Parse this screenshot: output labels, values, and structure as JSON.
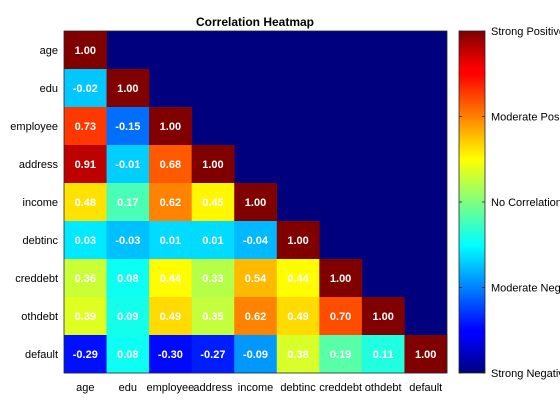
{
  "chart_data": {
    "type": "heatmap",
    "title": "Correlation Heatmap",
    "variables": [
      "age",
      "edu",
      "employee",
      "address",
      "income",
      "debtinc",
      "creddebt",
      "othdebt",
      "default"
    ],
    "matrix": [
      [
        1.0
      ],
      [
        -0.02,
        1.0
      ],
      [
        0.73,
        -0.15,
        1.0
      ],
      [
        0.91,
        -0.01,
        0.68,
        1.0
      ],
      [
        0.48,
        0.17,
        0.62,
        0.45,
        1.0
      ],
      [
        0.03,
        -0.03,
        0.01,
        0.01,
        -0.04,
        1.0
      ],
      [
        0.36,
        0.08,
        0.44,
        0.33,
        0.54,
        0.44,
        1.0
      ],
      [
        0.39,
        0.09,
        0.49,
        0.35,
        0.62,
        0.49,
        0.7,
        1.0
      ],
      [
        -0.29,
        0.08,
        -0.3,
        -0.27,
        -0.09,
        0.38,
        0.19,
        0.11,
        1.0
      ]
    ],
    "cell_labels": [
      [
        "1.00"
      ],
      [
        "-0.02",
        "1.00"
      ],
      [
        "0.73",
        "-0.15",
        "1.00"
      ],
      [
        "0.91",
        "-0.01",
        "0.68",
        "1.00"
      ],
      [
        "0.48",
        "0.17",
        "0.62",
        "0.45",
        "1.00"
      ],
      [
        "0.03",
        "-0.03",
        "0.01",
        "0.01",
        "-0.04",
        "1.00"
      ],
      [
        "0.36",
        "0.08",
        "0.44",
        "0.33",
        "0.54",
        "0.44",
        "1.00"
      ],
      [
        "0.39",
        "0.09",
        "0.49",
        "0.35",
        "0.62",
        "0.49",
        "0.70",
        "1.00"
      ],
      [
        "-0.29",
        "0.08",
        "-0.30",
        "-0.27",
        "-0.09",
        "0.38",
        "0.19",
        "0.11",
        "1.00"
      ]
    ],
    "color_range": [
      -0.5,
      1.0
    ],
    "colormap": "jet",
    "upper_triangle_color": "#00007f",
    "colorbar": {
      "tick_values": [
        1.0,
        0.625,
        0.25,
        -0.125,
        -0.5
      ],
      "tick_labels": [
        "Strong Positive",
        "Moderate Positive",
        "No Correlation",
        "Moderate Negative",
        "Strong Negative"
      ]
    },
    "legend": "right"
  }
}
